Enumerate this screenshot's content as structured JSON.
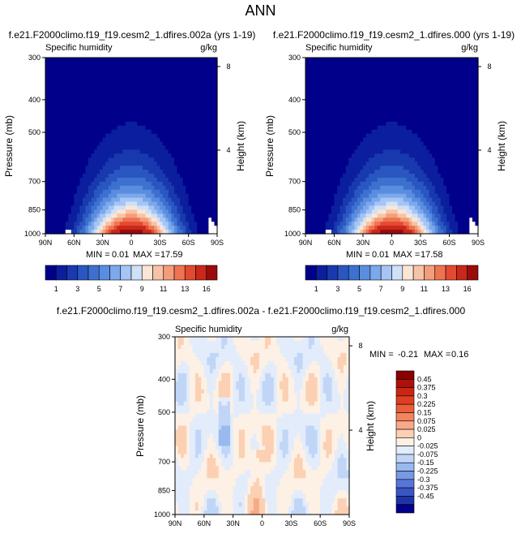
{
  "figure_title": "ANN",
  "chart_data": [
    {
      "type": "heatmap",
      "case_title": "f.e21.F2000climo.f19_f19.cesm2_1.dfires.002a (yrs 1-19)",
      "variable": "Specific humidity",
      "units": "g/kg",
      "ylabel": "Pressure (mb)",
      "ylabel_right": "Height (km)",
      "x_ticks": [
        "90N",
        "60N",
        "30N",
        "0",
        "30S",
        "60S",
        "90S"
      ],
      "y_ticks": [
        "300",
        "400",
        "500",
        "700",
        "850",
        "1000"
      ],
      "height_ticks": [
        "8",
        "4"
      ],
      "xlim": [
        90,
        -90
      ],
      "ylim": [
        1000,
        300
      ],
      "min_label": "MIN =",
      "min_value": "0.01",
      "max_label": "MAX =",
      "max_value": "17.59",
      "colorbar_levels": [
        1,
        2,
        3,
        4,
        5,
        6,
        7,
        8,
        9,
        10,
        11,
        12,
        13,
        14,
        16
      ],
      "colorbar_labels": [
        "1",
        "3",
        "5",
        "7",
        "9",
        "11",
        "13",
        "16"
      ],
      "colors": [
        "#00008b",
        "#0b1f9e",
        "#1939ae",
        "#2a56c1",
        "#3d71cf",
        "#5a8de0",
        "#7ca8ec",
        "#a6c5f4",
        "#cfe0f9",
        "#fbe6d6",
        "#f7c3a6",
        "#f49d7a",
        "#ef7352",
        "#e44a2f",
        "#c9281a",
        "#9a0c0c"
      ]
    },
    {
      "type": "heatmap",
      "case_title": "f.e21.F2000climo.f19_f19.cesm2_1.dfires.000 (yrs 1-19)",
      "variable": "Specific humidity",
      "units": "g/kg",
      "ylabel": "Pressure (mb)",
      "ylabel_right": "Height (km)",
      "x_ticks": [
        "90N",
        "60N",
        "30N",
        "0",
        "30S",
        "60S",
        "90S"
      ],
      "y_ticks": [
        "300",
        "400",
        "500",
        "700",
        "850",
        "1000"
      ],
      "height_ticks": [
        "8",
        "4"
      ],
      "xlim": [
        90,
        -90
      ],
      "ylim": [
        1000,
        300
      ],
      "min_label": "MIN =",
      "min_value": "0.01",
      "max_label": "MAX =",
      "max_value": "17.58",
      "colorbar_levels": [
        1,
        2,
        3,
        4,
        5,
        6,
        7,
        8,
        9,
        10,
        11,
        12,
        13,
        14,
        16
      ],
      "colorbar_labels": [
        "1",
        "3",
        "5",
        "7",
        "9",
        "11",
        "13",
        "16"
      ],
      "colors": [
        "#00008b",
        "#0b1f9e",
        "#1939ae",
        "#2a56c1",
        "#3d71cf",
        "#5a8de0",
        "#7ca8ec",
        "#a6c5f4",
        "#cfe0f9",
        "#fbe6d6",
        "#f7c3a6",
        "#f49d7a",
        "#ef7352",
        "#e44a2f",
        "#c9281a",
        "#9a0c0c"
      ]
    },
    {
      "type": "heatmap",
      "case_title": "f.e21.F2000climo.f19_f19.cesm2_1.dfires.002a - f.e21.F2000climo.f19_f19.cesm2_1.dfires.000",
      "variable": "Specific humidity",
      "units": "g/kg",
      "ylabel": "Pressure (mb)",
      "ylabel_right": "Height (km)",
      "x_ticks": [
        "90N",
        "60N",
        "30N",
        "0",
        "30S",
        "60S",
        "90S"
      ],
      "y_ticks": [
        "300",
        "400",
        "500",
        "700",
        "850",
        "1000"
      ],
      "height_ticks": [
        "8",
        "4"
      ],
      "xlim": [
        90,
        -90
      ],
      "ylim": [
        1000,
        300
      ],
      "min_label": "MIN =",
      "min_value": "-0.21",
      "max_label": "MAX =",
      "max_value": "0.16",
      "colorbar_labels": [
        "0.45",
        "0.375",
        "0.3",
        "0.225",
        "0.15",
        "0.075",
        "0.025",
        "0",
        "-0.025",
        "-0.075",
        "-0.15",
        "-0.225",
        "-0.3",
        "-0.375",
        "-0.45"
      ],
      "colors": [
        "#8b0000",
        "#b0100a",
        "#cc2512",
        "#e03e22",
        "#ec5d3c",
        "#f4845f",
        "#f8aa87",
        "#fbd0b3",
        "#fdf0e4",
        "#e2ecfb",
        "#c1d6f7",
        "#9ab9f0",
        "#7698e6",
        "#5676d8",
        "#3a55c6",
        "#1f33a8",
        "#00008b"
      ]
    }
  ]
}
